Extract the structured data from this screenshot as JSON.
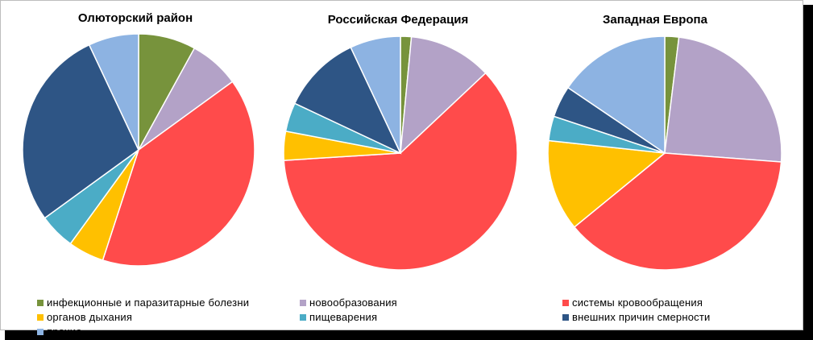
{
  "chart_data": [
    {
      "type": "pie",
      "title": "Олюторский район",
      "categories": [
        "инфекционные и паразитарные болезни",
        "новообразования",
        "системы кровообращения",
        "органов дыхания",
        "пищеварения",
        "внешних причин смерности",
        "прочие"
      ],
      "values": [
        8,
        7,
        40,
        5,
        5,
        28,
        7
      ]
    },
    {
      "type": "pie",
      "title": "Российская Федерация",
      "categories": [
        "инфекционные и паразитарные болезни",
        "новообразования",
        "системы кровообращения",
        "органов дыхания",
        "пищеварения",
        "внешних причин смерности",
        "прочие"
      ],
      "values": [
        1.5,
        11.5,
        61,
        4,
        4,
        11,
        7
      ]
    },
    {
      "type": "pie",
      "title": "Западная Европа",
      "categories": [
        "инфекционные и паразитарные болезни",
        "новообразования",
        "системы кровообращения",
        "органов дыхания",
        "пищеварения",
        "внешних причин смерности",
        "прочие"
      ],
      "values": [
        2,
        25,
        39,
        13,
        3.5,
        4.5,
        16
      ]
    }
  ],
  "legend": [
    {
      "label": "инфекционные и паразитарные болезни",
      "color": "#77933c"
    },
    {
      "label": "новообразования",
      "color": "#b3a2c7"
    },
    {
      "label": "системы кровообращения",
      "color": "#ff4b4b"
    },
    {
      "label": "органов дыхания",
      "color": "#ffc000"
    },
    {
      "label": "пищеварения",
      "color": "#4bacc6"
    },
    {
      "label": "внешних причин смерности",
      "color": "#2e5585"
    },
    {
      "label": "прочие",
      "color": "#8db3e2"
    }
  ]
}
